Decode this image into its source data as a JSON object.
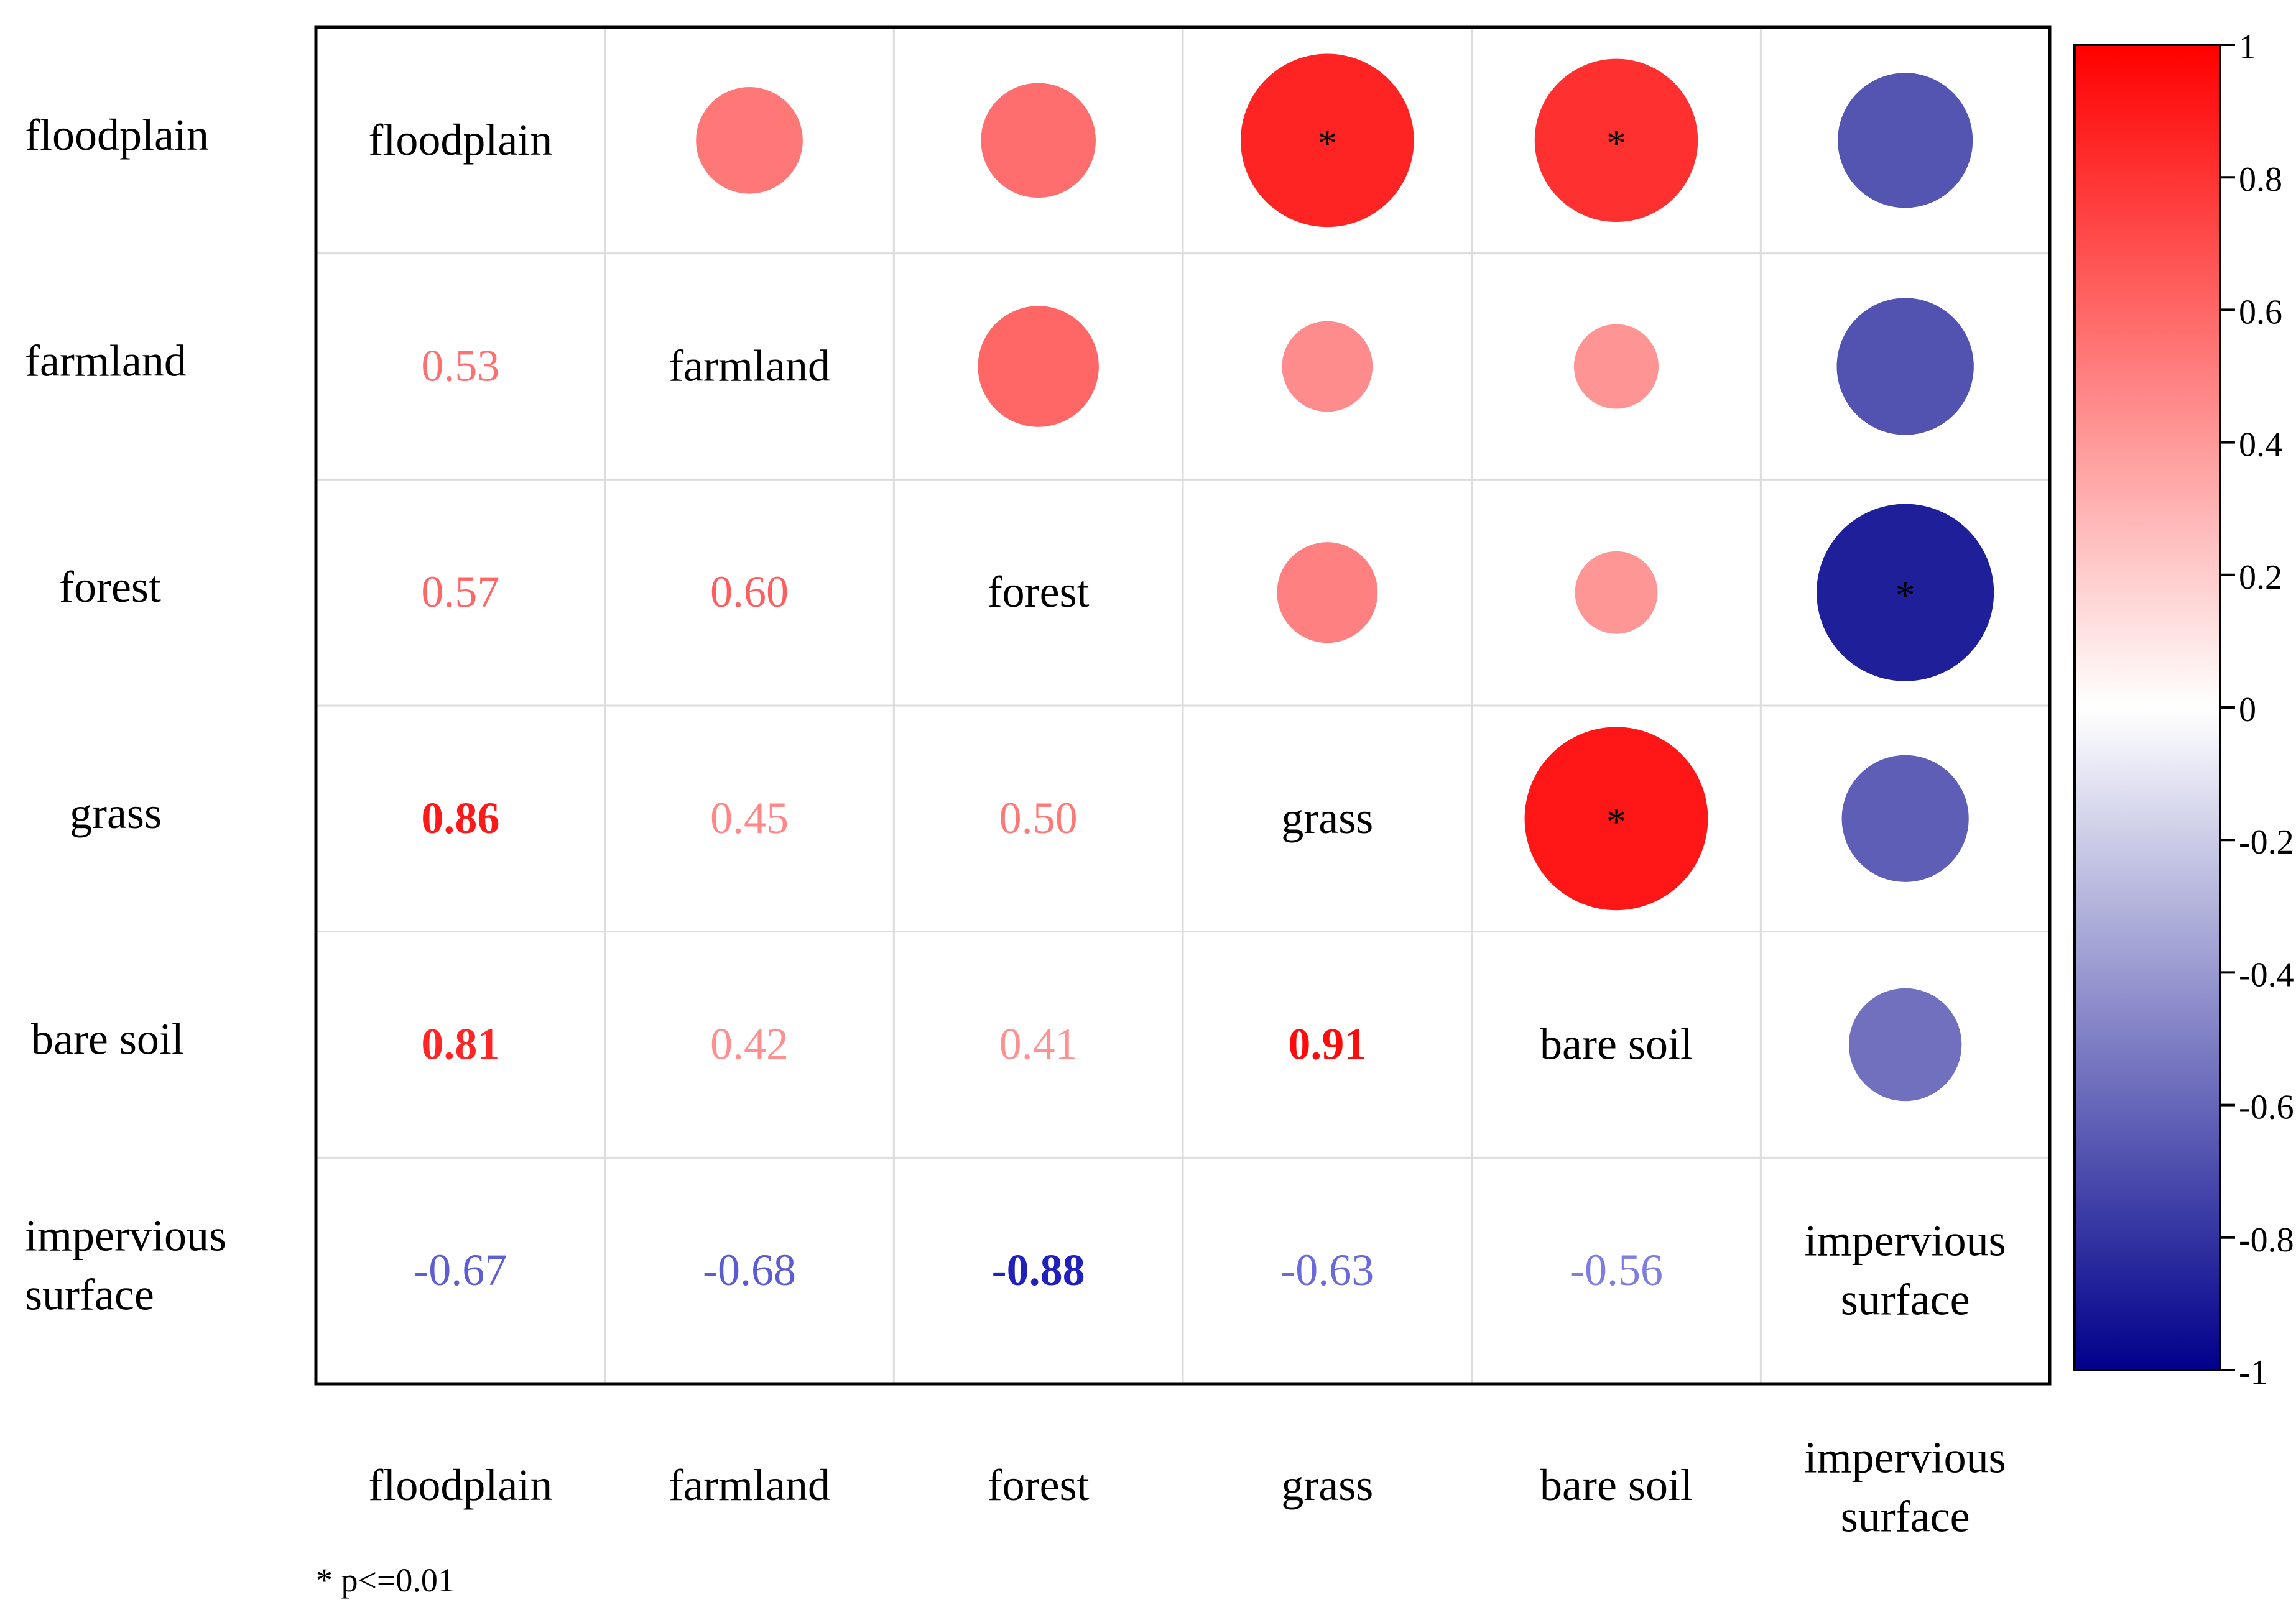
{
  "chart_data": {
    "type": "heatmap",
    "variables": [
      "floodplain",
      "farmland",
      "forest",
      "grass",
      "bare soil",
      "impervious surface"
    ],
    "matrix": [
      [
        1.0,
        0.53,
        0.57,
        0.86,
        0.81,
        -0.67
      ],
      [
        0.53,
        1.0,
        0.6,
        0.45,
        0.42,
        -0.68
      ],
      [
        0.57,
        0.6,
        1.0,
        0.5,
        0.41,
        -0.88
      ],
      [
        0.86,
        0.45,
        0.5,
        1.0,
        0.91,
        -0.63
      ],
      [
        0.81,
        0.42,
        0.41,
        0.91,
        1.0,
        -0.56
      ],
      [
        -0.67,
        -0.68,
        -0.88,
        -0.63,
        -0.56,
        1.0
      ]
    ],
    "lower_labels": [
      {
        "row": 1,
        "col": 0,
        "text": "0.53"
      },
      {
        "row": 2,
        "col": 0,
        "text": "0.57"
      },
      {
        "row": 2,
        "col": 1,
        "text": "0.60"
      },
      {
        "row": 3,
        "col": 0,
        "text": "0.86",
        "bold": true
      },
      {
        "row": 3,
        "col": 1,
        "text": "0.45"
      },
      {
        "row": 3,
        "col": 2,
        "text": "0.50"
      },
      {
        "row": 4,
        "col": 0,
        "text": "0.81",
        "bold": true
      },
      {
        "row": 4,
        "col": 1,
        "text": "0.42"
      },
      {
        "row": 4,
        "col": 2,
        "text": "0.41"
      },
      {
        "row": 4,
        "col": 3,
        "text": "0.91",
        "bold": true
      },
      {
        "row": 5,
        "col": 0,
        "text": "-0.67"
      },
      {
        "row": 5,
        "col": 1,
        "text": "-0.68"
      },
      {
        "row": 5,
        "col": 2,
        "text": "-0.88",
        "bold": true
      },
      {
        "row": 5,
        "col": 3,
        "text": "-0.63"
      },
      {
        "row": 5,
        "col": 4,
        "text": "-0.56"
      }
    ],
    "significant": [
      {
        "row": 0,
        "col": 3
      },
      {
        "row": 0,
        "col": 4
      },
      {
        "row": 2,
        "col": 5
      },
      {
        "row": 3,
        "col": 4
      }
    ],
    "significance_mark": "*",
    "diagonal_labels": [
      [
        "floodplain"
      ],
      [
        "farmland"
      ],
      [
        "forest"
      ],
      [
        "grass"
      ],
      [
        "bare soil"
      ],
      [
        "impervious",
        "surface"
      ]
    ],
    "row_labels": [
      [
        "floodplain"
      ],
      [
        "farmland"
      ],
      [
        "forest"
      ],
      [
        "grass"
      ],
      [
        "bare soil"
      ],
      [
        "impervious",
        "surface"
      ]
    ],
    "col_labels": [
      [
        "floodplain"
      ],
      [
        "farmland"
      ],
      [
        "forest"
      ],
      [
        "grass"
      ],
      [
        "bare soil"
      ],
      [
        "impervious",
        "surface"
      ]
    ],
    "colorbar": {
      "range": [
        -1,
        1
      ],
      "ticks": [
        "1",
        "0.8",
        "0.6",
        "0.4",
        "0.2",
        "0",
        "-0.2",
        "-0.4",
        "-0.6",
        "-0.8",
        "-1"
      ],
      "colors": {
        "high": "#ff0000",
        "mid": "#ffffff",
        "low": "#00008b"
      }
    },
    "footnote": "* p<=0.01"
  }
}
